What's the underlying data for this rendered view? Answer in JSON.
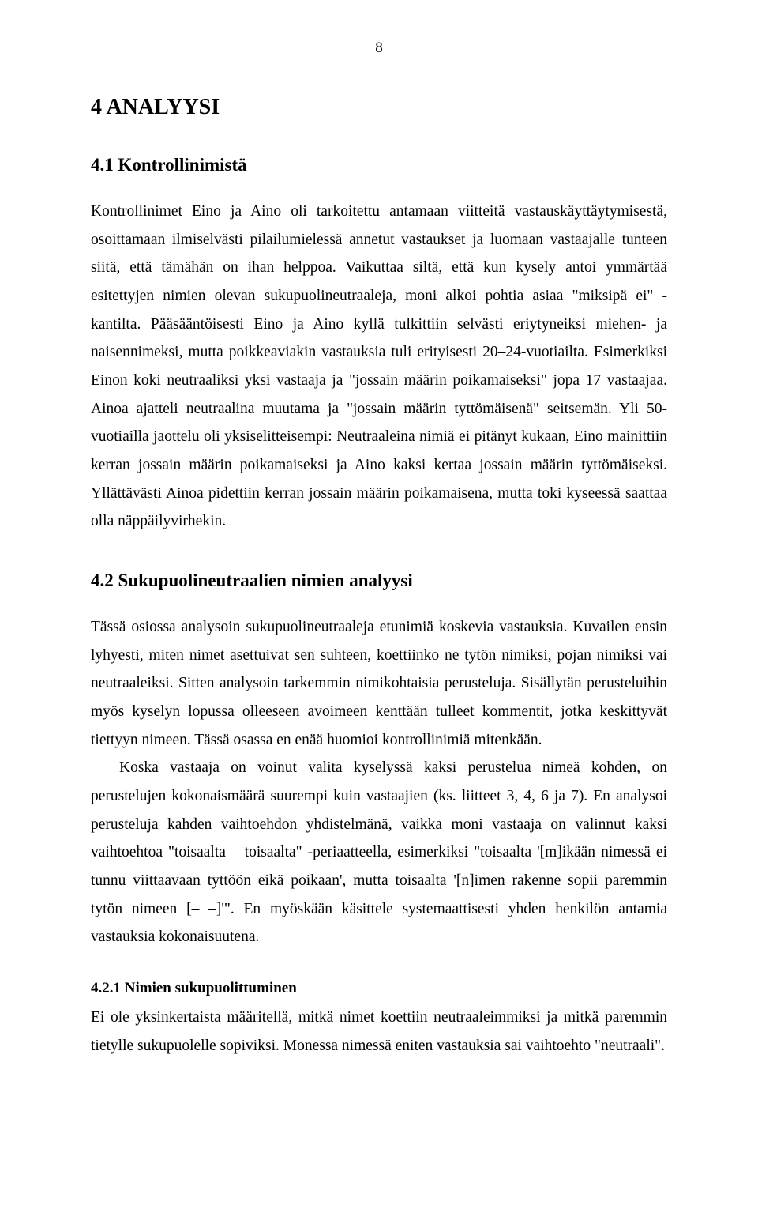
{
  "pageNumber": "8",
  "h1": "4 ANALYYSI",
  "h2_1": "4.1 Kontrollinimistä",
  "para1": "Kontrollinimet Eino ja Aino oli tarkoitettu antamaan viitteitä vastauskäyttäytymisestä, osoittamaan ilmiselvästi pilailumielessä annetut vastaukset ja luomaan vastaajalle tunteen siitä, että tämähän on ihan helppoa. Vaikuttaa siltä, että kun kysely antoi ymmärtää esitettyjen nimien olevan sukupuolineutraaleja, moni alkoi pohtia asiaa \"miksipä ei\" -kantilta. Pääsääntöisesti Eino ja Aino kyllä tulkittiin selvästi eriytyneiksi miehen- ja naisennimeksi, mutta poikkeaviakin vastauksia tuli erityisesti 20–24-vuotiailta. Esimerkiksi Einon koki neutraaliksi yksi vastaaja ja \"jossain määrin poikamaiseksi\" jopa 17 vastaajaa. Ainoa ajatteli neutraalina muutama ja \"jossain määrin tyttömäisenä\" seitsemän. Yli 50-vuotiailla jaottelu oli yksiselitteisempi: Neutraaleina nimiä ei pitänyt kukaan, Eino mainittiin kerran jossain määrin poikamaiseksi ja Aino kaksi kertaa jossain määrin tyttömäiseksi. Yllättävästi Ainoa pidettiin kerran jossain määrin poikamaisena, mutta toki kyseessä saattaa olla näppäilyvirhekin.",
  "h2_2": "4.2 Sukupuolineutraalien nimien analyysi",
  "para2": "Tässä osiossa analysoin sukupuolineutraaleja etunimiä koskevia vastauksia. Kuvailen ensin lyhyesti, miten nimet asettuivat sen suhteen, koettiinko ne tytön nimiksi, pojan nimiksi vai neutraaleiksi. Sitten analysoin tarkemmin nimikohtaisia perusteluja. Sisällytän perusteluihin myös kyselyn lopussa olleeseen avoimeen kenttään tulleet kommentit, jotka keskittyvät tiettyyn nimeen. Tässä osassa en enää huomioi kontrollinimiä mitenkään.",
  "para3": "Koska vastaaja on voinut valita kyselyssä kaksi perustelua nimeä kohden, on perustelujen kokonaismäärä suurempi kuin vastaajien (ks. liitteet 3, 4, 6 ja 7). En analysoi perusteluja kahden vaihtoehdon yhdistelmänä, vaikka moni vastaaja on valinnut kaksi vaihtoehtoa \"toisaalta – toisaalta\" -periaatteella, esimerkiksi \"toisaalta '[m]ikään nimessä ei tunnu viittaavaan tyttöön eikä poikaan', mutta toisaalta '[n]imen rakenne sopii paremmin tytön nimeen [– –]'\". En myöskään käsittele systemaattisesti yhden henkilön antamia vastauksia kokonaisuutena.",
  "h3_1": "4.2.1 Nimien sukupuolittuminen",
  "para4": "Ei ole yksinkertaista määritellä, mitkä nimet koettiin neutraaleimmiksi ja mitkä paremmin tietylle sukupuolelle sopiviksi. Monessa nimessä eniten vastauksia sai vaihtoehto \"neutraali\"."
}
